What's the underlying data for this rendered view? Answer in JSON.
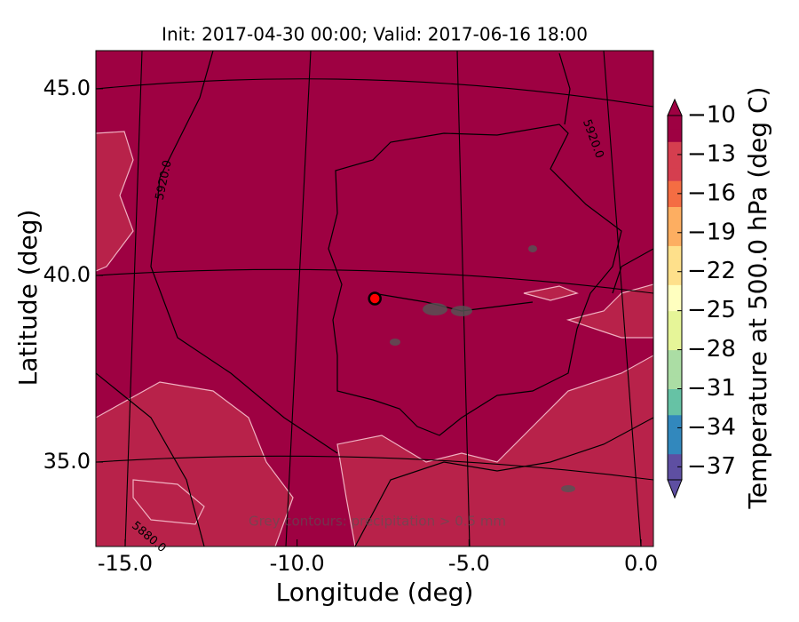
{
  "chart_data": {
    "type": "map",
    "title": "Init: 2017-04-30 00:00; Valid: 2017-06-16 18:00",
    "x_label": "Longitude (deg)",
    "y_label": "Latitude (deg)",
    "xlim": [
      -15.85,
      0.36
    ],
    "ylim": [
      32.74,
      46.02
    ],
    "xticks": [
      {
        "value": -15,
        "label": "-15.0"
      },
      {
        "value": -10,
        "label": "-10.0"
      },
      {
        "value": -5,
        "label": "-5.0"
      },
      {
        "value": 0,
        "label": "0.0"
      }
    ],
    "yticks": [
      {
        "value": 35,
        "label": "35.0"
      },
      {
        "value": 40,
        "label": "40.0"
      },
      {
        "value": 45,
        "label": "45.0"
      }
    ],
    "field_color": "#9e0142",
    "point": {
      "x": -7.74,
      "y": 39.38,
      "color": "#ff0000"
    },
    "annotations": [
      "5920.0",
      "5920.0",
      "5880.0",
      "Grey contours: precipitation > 0.5 mm"
    ],
    "colorbar": {
      "label": "Temperature at 500.0 hPa (deg C)",
      "lim": [
        -38,
        -10
      ],
      "ticks": [
        {
          "value": -10,
          "label": "−10"
        },
        {
          "value": -13,
          "label": "−13"
        },
        {
          "value": -16,
          "label": "−16"
        },
        {
          "value": -19,
          "label": "−19"
        },
        {
          "value": -22,
          "label": "−22"
        },
        {
          "value": -25,
          "label": "−25"
        },
        {
          "value": -28,
          "label": "−28"
        },
        {
          "value": -31,
          "label": "−31"
        },
        {
          "value": -34,
          "label": "−34"
        },
        {
          "value": -37,
          "label": "−37"
        }
      ],
      "colors": [
        "#5e4fa2",
        "#3288bd",
        "#66c2a5",
        "#abdda4",
        "#e6f598",
        "#ffffbf",
        "#fee08b",
        "#fdae61",
        "#f46d43",
        "#d53e4f",
        "#9e0142"
      ]
    }
  }
}
